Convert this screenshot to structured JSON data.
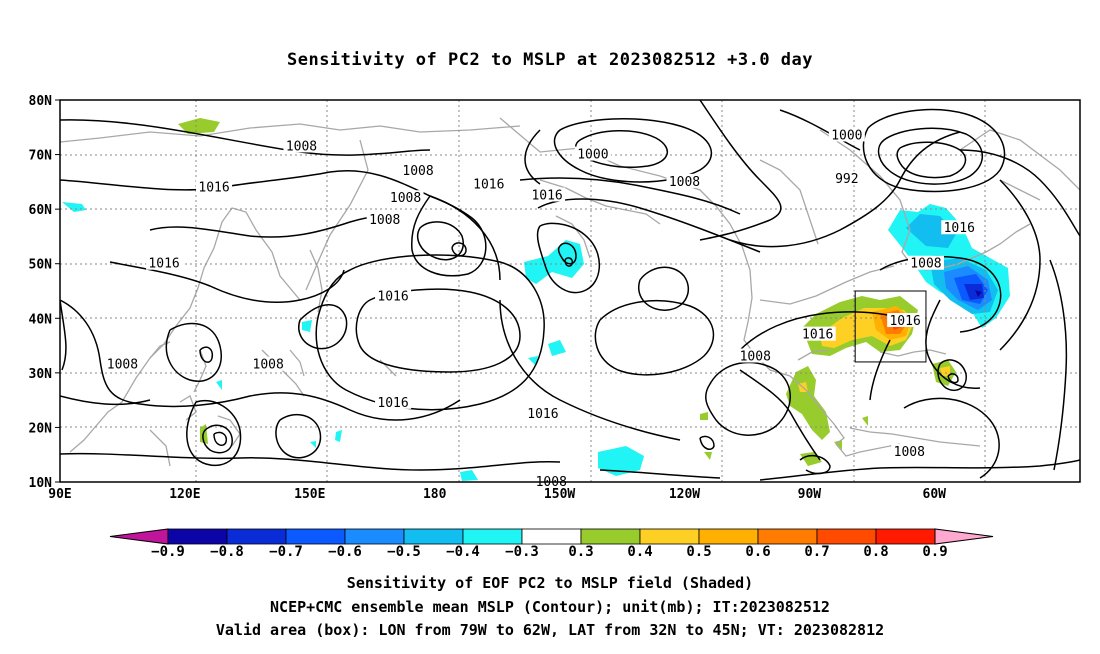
{
  "title": "Sensitivity of PC2 to MSLP at 2023082512 +3.0 day",
  "axes": {
    "lat_labels": [
      "80N",
      "70N",
      "60N",
      "50N",
      "40N",
      "30N",
      "20N",
      "10N"
    ],
    "lon_labels": [
      "90E",
      "120E",
      "150E",
      "180",
      "150W",
      "120W",
      "90W",
      "60W"
    ]
  },
  "contour_labels": [
    {
      "text": "1008",
      "lon": 148,
      "lat": 71.5
    },
    {
      "text": "1016",
      "lon": 127,
      "lat": 64
    },
    {
      "text": "1008",
      "lon": 173,
      "lat": 62
    },
    {
      "text": "1008",
      "lon": 168,
      "lat": 58
    },
    {
      "text": "1016",
      "lon": 115,
      "lat": 50
    },
    {
      "text": "1016",
      "lon": 170,
      "lat": 44
    },
    {
      "text": "1008",
      "lon": 105,
      "lat": 31.5
    },
    {
      "text": "1008",
      "lon": 140,
      "lat": 31.5
    },
    {
      "text": "1016",
      "lon": 170,
      "lat": 24.5
    },
    {
      "text": "1008",
      "lon": 176,
      "lat": 67
    },
    {
      "text": "1016",
      "lon": 193,
      "lat": 64.5
    },
    {
      "text": "1000",
      "lon": 218,
      "lat": 70
    },
    {
      "text": "1008",
      "lon": 240,
      "lat": 65
    },
    {
      "text": "1016",
      "lon": 207,
      "lat": 62.5
    },
    {
      "text": "1008",
      "lon": 208,
      "lat": 10
    },
    {
      "text": "1016",
      "lon": 206,
      "lat": 22.5
    },
    {
      "text": "1016",
      "lon": 272,
      "lat": 37
    },
    {
      "text": "1008",
      "lon": 257,
      "lat": 33
    },
    {
      "text": "1008",
      "lon": 294,
      "lat": 15.5
    },
    {
      "text": "1016",
      "lon": 293,
      "lat": 39.5
    },
    {
      "text": "1008",
      "lon": 298,
      "lat": 50
    },
    {
      "text": "1016",
      "lon": 306,
      "lat": 56.5
    },
    {
      "text": "1000",
      "lon": 279,
      "lat": 73.5
    },
    {
      "text": "992",
      "lon": 279,
      "lat": 65.5
    }
  ],
  "colorbar": {
    "labels": [
      "-0.9",
      "-0.8",
      "-0.7",
      "-0.6",
      "-0.5",
      "-0.4",
      "-0.3",
      "0.3",
      "0.4",
      "0.5",
      "0.6",
      "0.7",
      "0.8",
      "0.9"
    ],
    "colors": [
      "#0c04a6",
      "#0a2cd6",
      "#0a5aff",
      "#1a8cff",
      "#12bef0",
      "#20f4f4",
      "#ffffff",
      "#98cc2c",
      "#ffd024",
      "#ffb000",
      "#ff7c00",
      "#ff4a00",
      "#ff1a00"
    ],
    "under_color": "#c0149a",
    "over_color": "#ffa8d0"
  },
  "captions": [
    "Sensitivity of EOF PC2 to MSLP field (Shaded)",
    "NCEP+CMC ensemble mean MSLP (Contour); unit(mb); IT:2023082512",
    "Valid area (box): LON from 79W to 62W, LAT from 32N to 45N; VT: 2023082812"
  ],
  "valid_box": {
    "lon_min": -79,
    "lon_max": -62,
    "lat_min": 32,
    "lat_max": 45
  },
  "colors": {
    "contour": "#000000",
    "coast": "#a8a8a8",
    "grid": "#888888"
  }
}
